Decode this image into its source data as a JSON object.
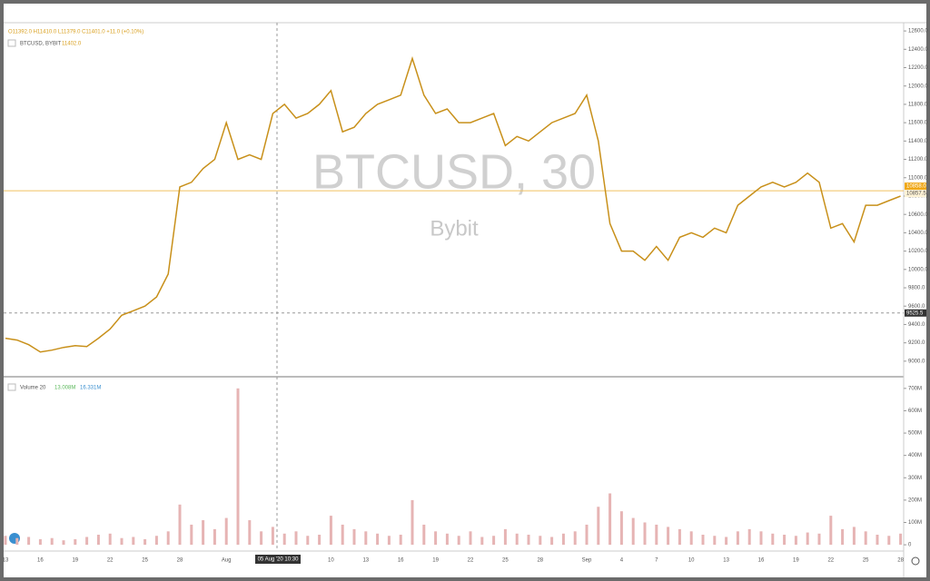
{
  "chart_data": {
    "type": "line",
    "ohlc_legend": "O11392.0 H11410.0 L11379.0 C11401.0 +11.0 (+0.10%)",
    "symbol": "BTCUSD, BYBIT",
    "symbol_price": "11402.0",
    "watermark": "BTCUSD, 30",
    "watermark_sub": "Bybit",
    "crosshair_time": "05 Aug '20 10:30",
    "color": "#c8901a",
    "categories": [
      "13",
      null,
      null,
      "16",
      null,
      null,
      "19",
      null,
      null,
      "22",
      null,
      null,
      "25",
      null,
      null,
      "28",
      null,
      null,
      null,
      "Aug",
      null,
      null,
      null,
      null,
      null,
      null,
      null,
      null,
      "10",
      null,
      null,
      "13",
      null,
      null,
      "16",
      null,
      null,
      "19",
      null,
      null,
      "22",
      null,
      null,
      "25",
      null,
      null,
      "28",
      null,
      null,
      null,
      "Sep",
      null,
      null,
      "4",
      null,
      null,
      "7",
      null,
      null,
      "10",
      null,
      null,
      "13",
      null,
      null,
      "16",
      null,
      null,
      "19",
      null,
      null,
      "22",
      null,
      null,
      "25",
      null,
      null,
      "28"
    ],
    "values": [
      9250,
      9230,
      9180,
      9100,
      9120,
      9150,
      9170,
      9160,
      9250,
      9350,
      9500,
      9550,
      9600,
      9700,
      9950,
      10900,
      10950,
      11100,
      11200,
      11600,
      11200,
      11250,
      11200,
      11700,
      11800,
      11650,
      11700,
      11800,
      11950,
      11500,
      11550,
      11700,
      11800,
      11850,
      11900,
      12300,
      11900,
      11700,
      11750,
      11600,
      11600,
      11650,
      11700,
      11350,
      11450,
      11400,
      11500,
      11600,
      11650,
      11700,
      11900,
      11400,
      10500,
      10200,
      10200,
      10100,
      10250,
      10100,
      10350,
      10400,
      10350,
      10450,
      10400,
      10700,
      10800,
      10900,
      10950,
      10900,
      10950,
      11050,
      10950,
      10450,
      10500,
      10300,
      10700,
      10700,
      10750,
      10800
    ],
    "ylim": [
      8860,
      12690
    ],
    "yticks": [
      {
        "value": 9000,
        "label": "9000.0"
      },
      {
        "value": 9200,
        "label": "9200.0"
      },
      {
        "value": 9400,
        "label": "9400.0"
      },
      {
        "value": 9600,
        "label": "9600.0"
      },
      {
        "value": 9800,
        "label": "9800.0"
      },
      {
        "value": 10000,
        "label": "10000.0"
      },
      {
        "value": 10200,
        "label": "10200.0"
      },
      {
        "value": 10400,
        "label": "10400.0"
      },
      {
        "value": 10600,
        "label": "10600.0"
      },
      {
        "value": 10800,
        "label": "10800.0"
      },
      {
        "value": 11000,
        "label": "11000.0"
      },
      {
        "value": 11200,
        "label": "11200.0"
      },
      {
        "value": 11400,
        "label": "11400.0"
      },
      {
        "value": 11600,
        "label": "11600.0"
      },
      {
        "value": 11800,
        "label": "11800.0"
      },
      {
        "value": 12000,
        "label": "12000.0"
      },
      {
        "value": 12200,
        "label": "12200.0"
      },
      {
        "value": 12400,
        "label": "12400.0"
      },
      {
        "value": 12600,
        "label": "12600.0"
      }
    ],
    "last_price": {
      "value": 10858,
      "label": "10858.0"
    },
    "price_line": 10857.5,
    "crosshair_price": 9525.5,
    "volume": {
      "type": "bar",
      "label": "Volume 20",
      "ma_short": "13.008M",
      "ma_long": "16.331M",
      "color": "#e6b4b4",
      "values": [
        40,
        30,
        35,
        25,
        30,
        20,
        25,
        35,
        45,
        50,
        30,
        35,
        25,
        40,
        60,
        180,
        90,
        110,
        70,
        120,
        700,
        110,
        60,
        80,
        50,
        60,
        40,
        45,
        130,
        90,
        70,
        60,
        50,
        40,
        45,
        200,
        90,
        60,
        50,
        40,
        60,
        35,
        40,
        70,
        50,
        45,
        40,
        35,
        50,
        60,
        90,
        170,
        230,
        150,
        120,
        100,
        90,
        80,
        70,
        60,
        45,
        40,
        35,
        60,
        70,
        60,
        50,
        45,
        40,
        55,
        50,
        130,
        70,
        80,
        60,
        45,
        40,
        50
      ],
      "ylim": [
        -24,
        740
      ],
      "yticks": [
        0,
        {
          "value": 100,
          "label": "100M"
        },
        {
          "value": 200,
          "label": "200M"
        },
        {
          "value": 300,
          "label": "300M"
        },
        {
          "value": 400,
          "label": "400M"
        },
        {
          "value": 500,
          "label": "500M"
        },
        {
          "value": 600,
          "label": "600M"
        },
        {
          "value": 700,
          "label": "700M"
        }
      ]
    }
  }
}
